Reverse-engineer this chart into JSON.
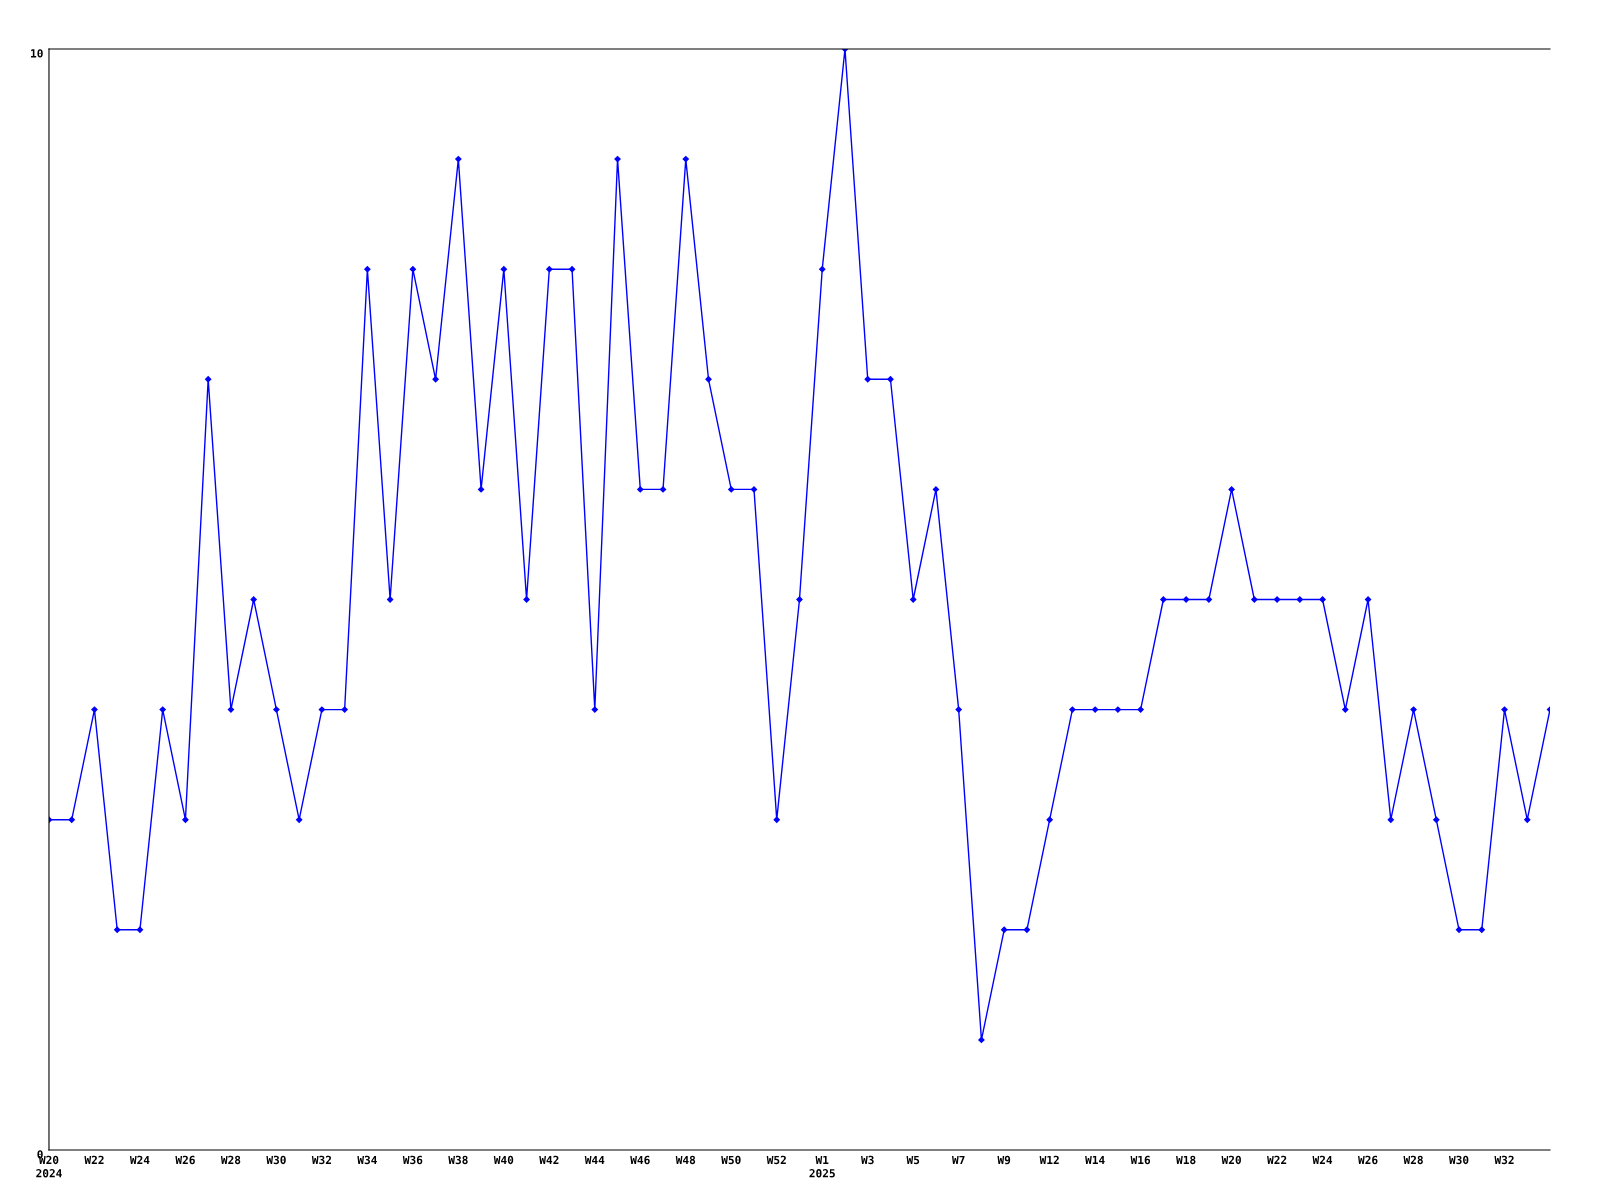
{
  "chart_data": {
    "type": "line",
    "categories": [
      "W20\n2024",
      null,
      "W22",
      null,
      "W24",
      null,
      "W26",
      null,
      "W28",
      null,
      "W30",
      null,
      "W32",
      null,
      "W34",
      null,
      "W36",
      null,
      "W38",
      null,
      "W40",
      null,
      "W42",
      null,
      "W44",
      null,
      "W46",
      null,
      "W48",
      null,
      "W50",
      null,
      "W52",
      null,
      "W1\n2025",
      null,
      "W3",
      null,
      "W5",
      null,
      "W7",
      null,
      "W9",
      null,
      "W12",
      null,
      "W14",
      null,
      "W16",
      null,
      "W18",
      null,
      "W20",
      null,
      "W22",
      null,
      "W24",
      null,
      "W26",
      null,
      "W28",
      null,
      "W30",
      null,
      "W32",
      null,
      null
    ],
    "series": [
      {
        "color": "#0000ff",
        "values": [
          3,
          3,
          4,
          2,
          2,
          4,
          3,
          7,
          4,
          5,
          4,
          3,
          4,
          4,
          8,
          5,
          8,
          7,
          9,
          6,
          8,
          5,
          8,
          8,
          4,
          9,
          6,
          6,
          9,
          7,
          6,
          6,
          3,
          5,
          8,
          10,
          7,
          7,
          5,
          6,
          4,
          1,
          2,
          2,
          3,
          4,
          4,
          4,
          4,
          5,
          5,
          5,
          6,
          5,
          5,
          5,
          5,
          4,
          5,
          3,
          4,
          3,
          2,
          2,
          4,
          3,
          4
        ]
      }
    ],
    "ylim": [
      0,
      10
    ],
    "yticks": [
      0,
      10
    ],
    "grid": false,
    "legend": false,
    "marker": "diamond",
    "line_style": "solid"
  }
}
